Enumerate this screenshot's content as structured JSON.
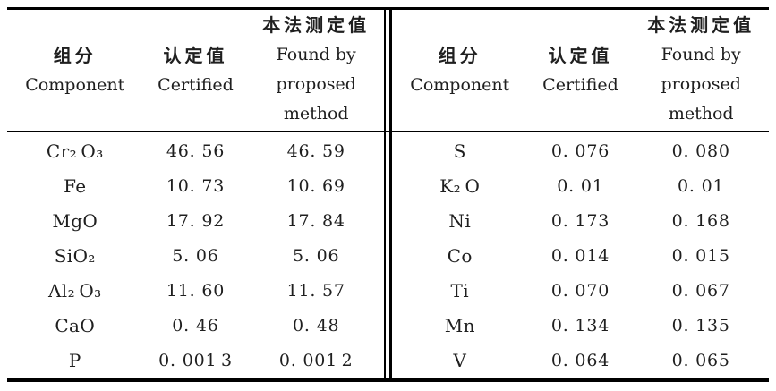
{
  "table": {
    "header": {
      "component_zh": "组分",
      "component_en": "Component",
      "certified_zh": "认定值",
      "certified_en": "Certified",
      "found_zh": "本法测定值",
      "found_en_line1": "Found by",
      "found_en_line2": "proposed",
      "found_en_line3": "method"
    },
    "left": {
      "rows": [
        {
          "component": "Cr₂ O₃",
          "certified": "46. 56",
          "found": "46. 59"
        },
        {
          "component": "Fe",
          "certified": "10. 73",
          "found": "10. 69"
        },
        {
          "component": "MgO",
          "certified": "17. 92",
          "found": "17. 84"
        },
        {
          "component": "SiO₂",
          "certified": "5. 06",
          "found": "5. 06"
        },
        {
          "component": "Al₂ O₃",
          "certified": "11. 60",
          "found": "11. 57"
        },
        {
          "component": "CaO",
          "certified": "0. 46",
          "found": "0. 48"
        },
        {
          "component": "P",
          "certified": "0. 001 3",
          "found": "0. 001 2"
        }
      ]
    },
    "right": {
      "rows": [
        {
          "component": "S",
          "certified": "0. 076",
          "found": "0. 080"
        },
        {
          "component": "K₂ O",
          "certified": "0. 01",
          "found": "0. 01"
        },
        {
          "component": "Ni",
          "certified": "0. 173",
          "found": "0. 168"
        },
        {
          "component": "Co",
          "certified": "0. 014",
          "found": "0. 015"
        },
        {
          "component": "Ti",
          "certified": "0. 070",
          "found": "0. 067"
        },
        {
          "component": "Mn",
          "certified": "0. 134",
          "found": "0. 135"
        },
        {
          "component": "V",
          "certified": "0. 064",
          "found": "0. 065"
        }
      ]
    }
  },
  "colors": {
    "rule": "#000000",
    "text": "#1f1f1f",
    "background": "#ffffff"
  }
}
